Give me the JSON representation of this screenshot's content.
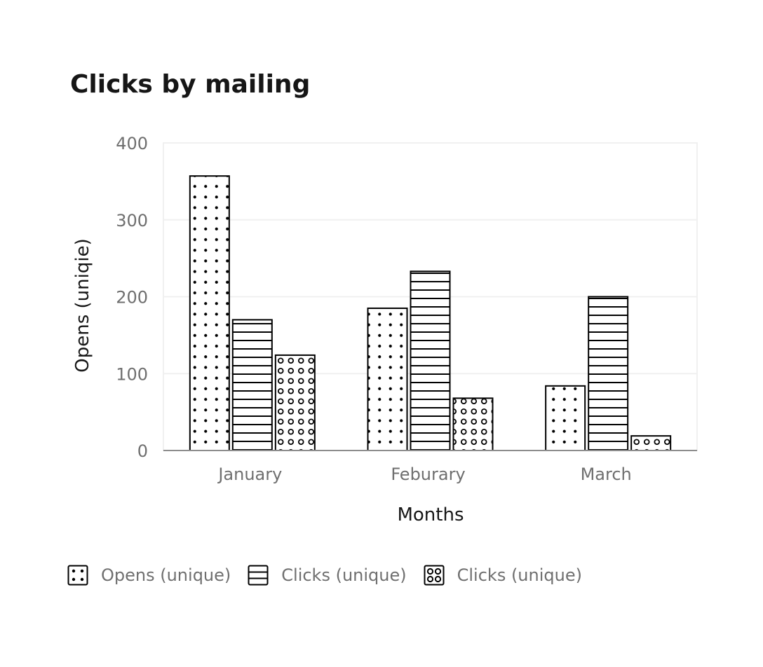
{
  "chart_data": {
    "type": "bar",
    "title": "Clicks by mailing",
    "xlabel": "Months",
    "ylabel": "Opens (uniqie)",
    "categories": [
      "January",
      "Feburary",
      "March"
    ],
    "ylim": [
      0,
      400
    ],
    "yticks": [
      0,
      100,
      200,
      300,
      400
    ],
    "grid": true,
    "legend_position": "bottom-left",
    "series": [
      {
        "name": "Opens (unique)",
        "pattern": "dots",
        "values": [
          357,
          185,
          84
        ]
      },
      {
        "name": "Clicks (unique)",
        "pattern": "horizontal-lines",
        "values": [
          170,
          233,
          200
        ]
      },
      {
        "name": "Clicks (unique)",
        "pattern": "circles",
        "values": [
          124,
          68,
          19
        ]
      }
    ],
    "colors": {
      "bar_fill": "#ffffff",
      "bar_stroke": "#000000",
      "grid": "#f0f0f0",
      "axis": "#8d8d8d",
      "title": "#161616",
      "tick_text": "#6f6f6f"
    }
  }
}
